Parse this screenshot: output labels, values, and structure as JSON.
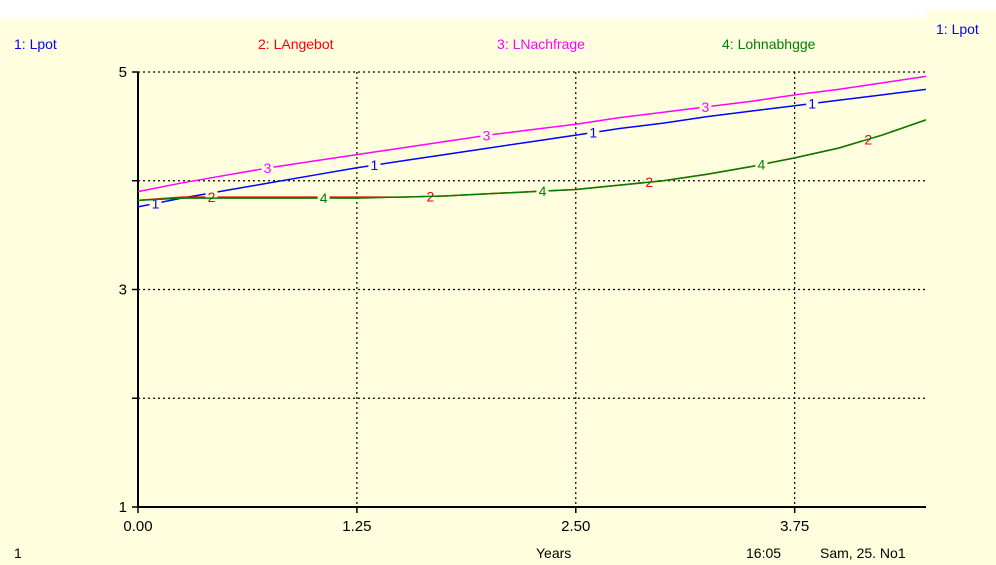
{
  "window": {
    "side_label": "1: Lpot"
  },
  "footer": {
    "page_number": "1",
    "time": "16:05",
    "date": "Sam, 25. No1"
  },
  "colors": {
    "background": "#ffffe0",
    "axis": "#000000",
    "grid": "#000000"
  },
  "chart_data": {
    "type": "line",
    "title": "",
    "xlabel": "Years",
    "ylabel": "",
    "xlim": [
      0,
      4.5
    ],
    "ylim": [
      1,
      5
    ],
    "x_ticks": [
      "0.00",
      "1.25",
      "2.50",
      "3.75"
    ],
    "y_ticks": [
      "1",
      "3",
      "5"
    ],
    "grid": true,
    "legend_position": "top",
    "x": [
      0,
      0.25,
      0.5,
      0.75,
      1.0,
      1.25,
      1.5,
      1.75,
      2.0,
      2.25,
      2.5,
      2.75,
      3.0,
      3.25,
      3.5,
      3.75,
      4.0,
      4.25,
      4.5
    ],
    "series": [
      {
        "name": "1: Lpot",
        "marker": "1",
        "color": "#0000ff",
        "values": [
          3.76,
          3.84,
          3.91,
          3.98,
          4.05,
          4.12,
          4.18,
          4.24,
          4.3,
          4.36,
          4.42,
          4.48,
          4.53,
          4.59,
          4.64,
          4.69,
          4.74,
          4.79,
          4.84
        ]
      },
      {
        "name": "2: LAngebot",
        "marker": "2",
        "color": "#ff0000",
        "values": [
          3.82,
          3.85,
          3.85,
          3.85,
          3.85,
          3.85,
          3.85,
          3.86,
          3.88,
          3.9,
          3.92,
          3.96,
          4.0,
          4.06,
          4.13,
          4.21,
          4.3,
          4.42,
          4.56
        ]
      },
      {
        "name": "3: LNachfrage",
        "marker": "3",
        "color": "#ff00ff",
        "values": [
          3.9,
          3.98,
          4.05,
          4.12,
          4.18,
          4.24,
          4.3,
          4.36,
          4.42,
          4.47,
          4.52,
          4.58,
          4.63,
          4.68,
          4.73,
          4.79,
          4.84,
          4.9,
          4.96
        ]
      },
      {
        "name": "4: Lohnabhgge",
        "marker": "4",
        "color": "#008000",
        "values": [
          3.82,
          3.84,
          3.84,
          3.84,
          3.84,
          3.84,
          3.85,
          3.86,
          3.88,
          3.9,
          3.92,
          3.96,
          4.0,
          4.06,
          4.13,
          4.21,
          4.3,
          4.42,
          4.56
        ]
      }
    ]
  }
}
